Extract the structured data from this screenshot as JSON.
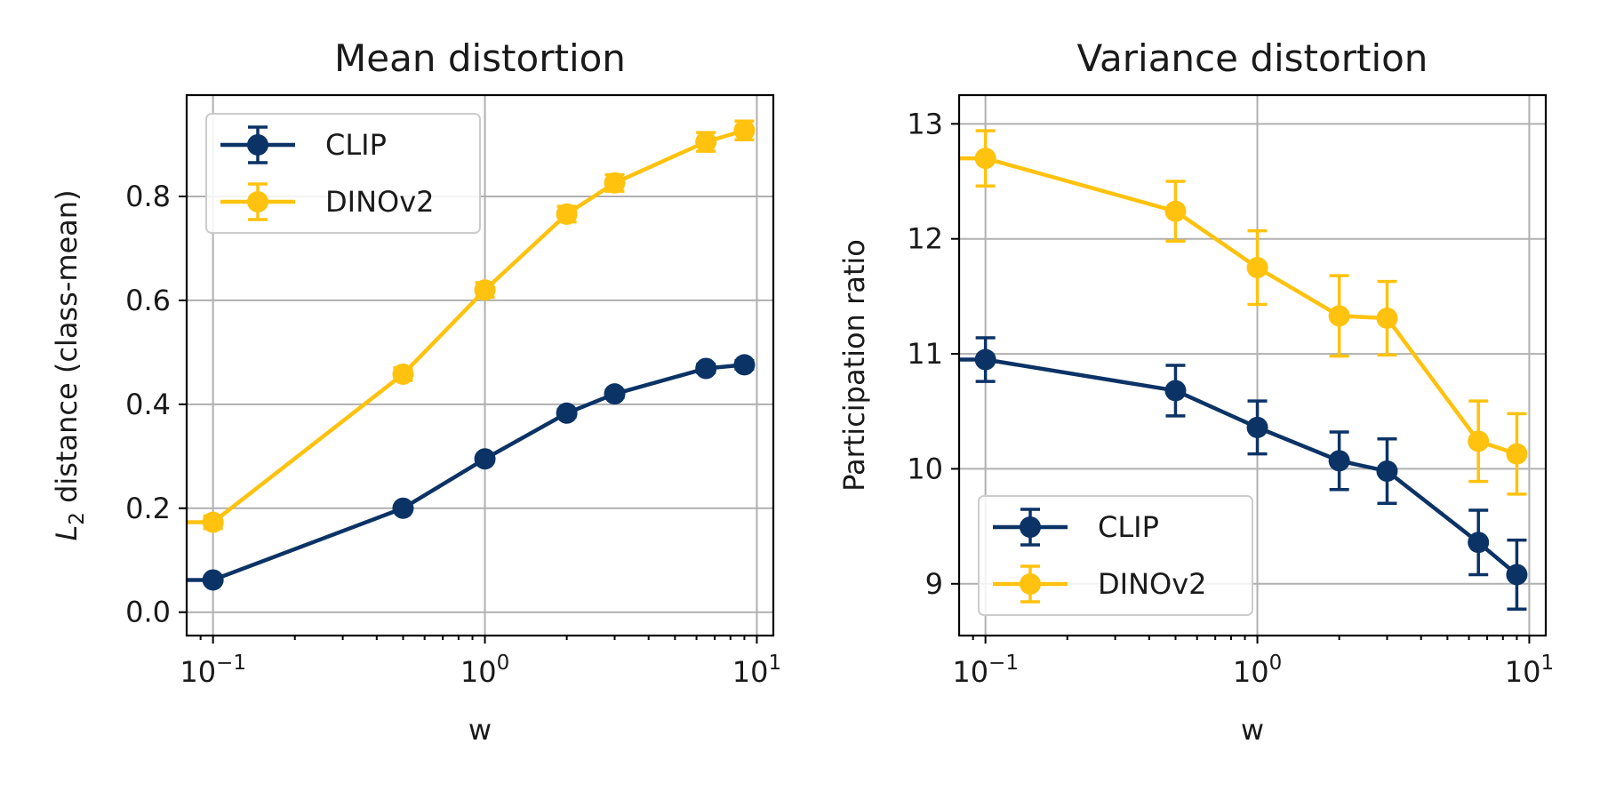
{
  "chart_data": [
    {
      "type": "line",
      "title": "Mean distortion",
      "xlabel": "w",
      "ylabel_symbol": "L",
      "ylabel_subscript": "2",
      "ylabel_rest": " distance (class-mean)",
      "xscale": "log",
      "xlim": [
        0.08,
        11.5
      ],
      "ylim": [
        -0.045,
        0.995
      ],
      "x_ticks": [
        0.1,
        1,
        10
      ],
      "x_tick_labels": [
        {
          "base": "10",
          "exp": "−1"
        },
        {
          "base": "10",
          "exp": "0"
        },
        {
          "base": "10",
          "exp": "1"
        }
      ],
      "y_ticks": [
        0.0,
        0.2,
        0.4,
        0.6,
        0.8
      ],
      "y_tick_labels": [
        "0.0",
        "0.2",
        "0.4",
        "0.6",
        "0.8"
      ],
      "grid": true,
      "legend_position": "top-left",
      "x": [
        0.1,
        0.5,
        1,
        2,
        3,
        6.5,
        9
      ],
      "series": [
        {
          "name": "CLIP",
          "color": "#0b3366",
          "values": [
            0.062,
            0.2,
            0.295,
            0.383,
            0.42,
            0.469,
            0.476
          ],
          "errors": [
            0.005,
            0.005,
            0.006,
            0.007,
            0.007,
            0.008,
            0.008
          ]
        },
        {
          "name": "DINOv2",
          "color": "#ffc20e",
          "values": [
            0.173,
            0.458,
            0.62,
            0.766,
            0.826,
            0.905,
            0.927
          ],
          "errors": [
            0.012,
            0.012,
            0.014,
            0.015,
            0.016,
            0.018,
            0.018
          ]
        }
      ]
    },
    {
      "type": "line",
      "title": "Variance distortion",
      "xlabel": "w",
      "ylabel": "Participation ratio",
      "xscale": "log",
      "xlim": [
        0.08,
        11.5
      ],
      "ylim": [
        8.55,
        13.25
      ],
      "x_ticks": [
        0.1,
        1,
        10
      ],
      "x_tick_labels": [
        {
          "base": "10",
          "exp": "−1"
        },
        {
          "base": "10",
          "exp": "0"
        },
        {
          "base": "10",
          "exp": "1"
        }
      ],
      "y_ticks": [
        9,
        10,
        11,
        12,
        13
      ],
      "y_tick_labels": [
        "9",
        "10",
        "11",
        "12",
        "13"
      ],
      "grid": true,
      "legend_position": "bottom-left",
      "x": [
        0.1,
        0.5,
        1,
        2,
        3,
        6.5,
        9
      ],
      "series": [
        {
          "name": "CLIP",
          "color": "#0b3366",
          "values": [
            10.95,
            10.68,
            10.36,
            10.07,
            9.98,
            9.36,
            9.08
          ],
          "errors": [
            0.19,
            0.22,
            0.23,
            0.25,
            0.28,
            0.28,
            0.3
          ]
        },
        {
          "name": "DINOv2",
          "color": "#ffc20e",
          "values": [
            12.7,
            12.24,
            11.75,
            11.33,
            11.31,
            10.24,
            10.13
          ],
          "errors": [
            0.24,
            0.26,
            0.32,
            0.35,
            0.32,
            0.35,
            0.35
          ]
        }
      ]
    }
  ]
}
